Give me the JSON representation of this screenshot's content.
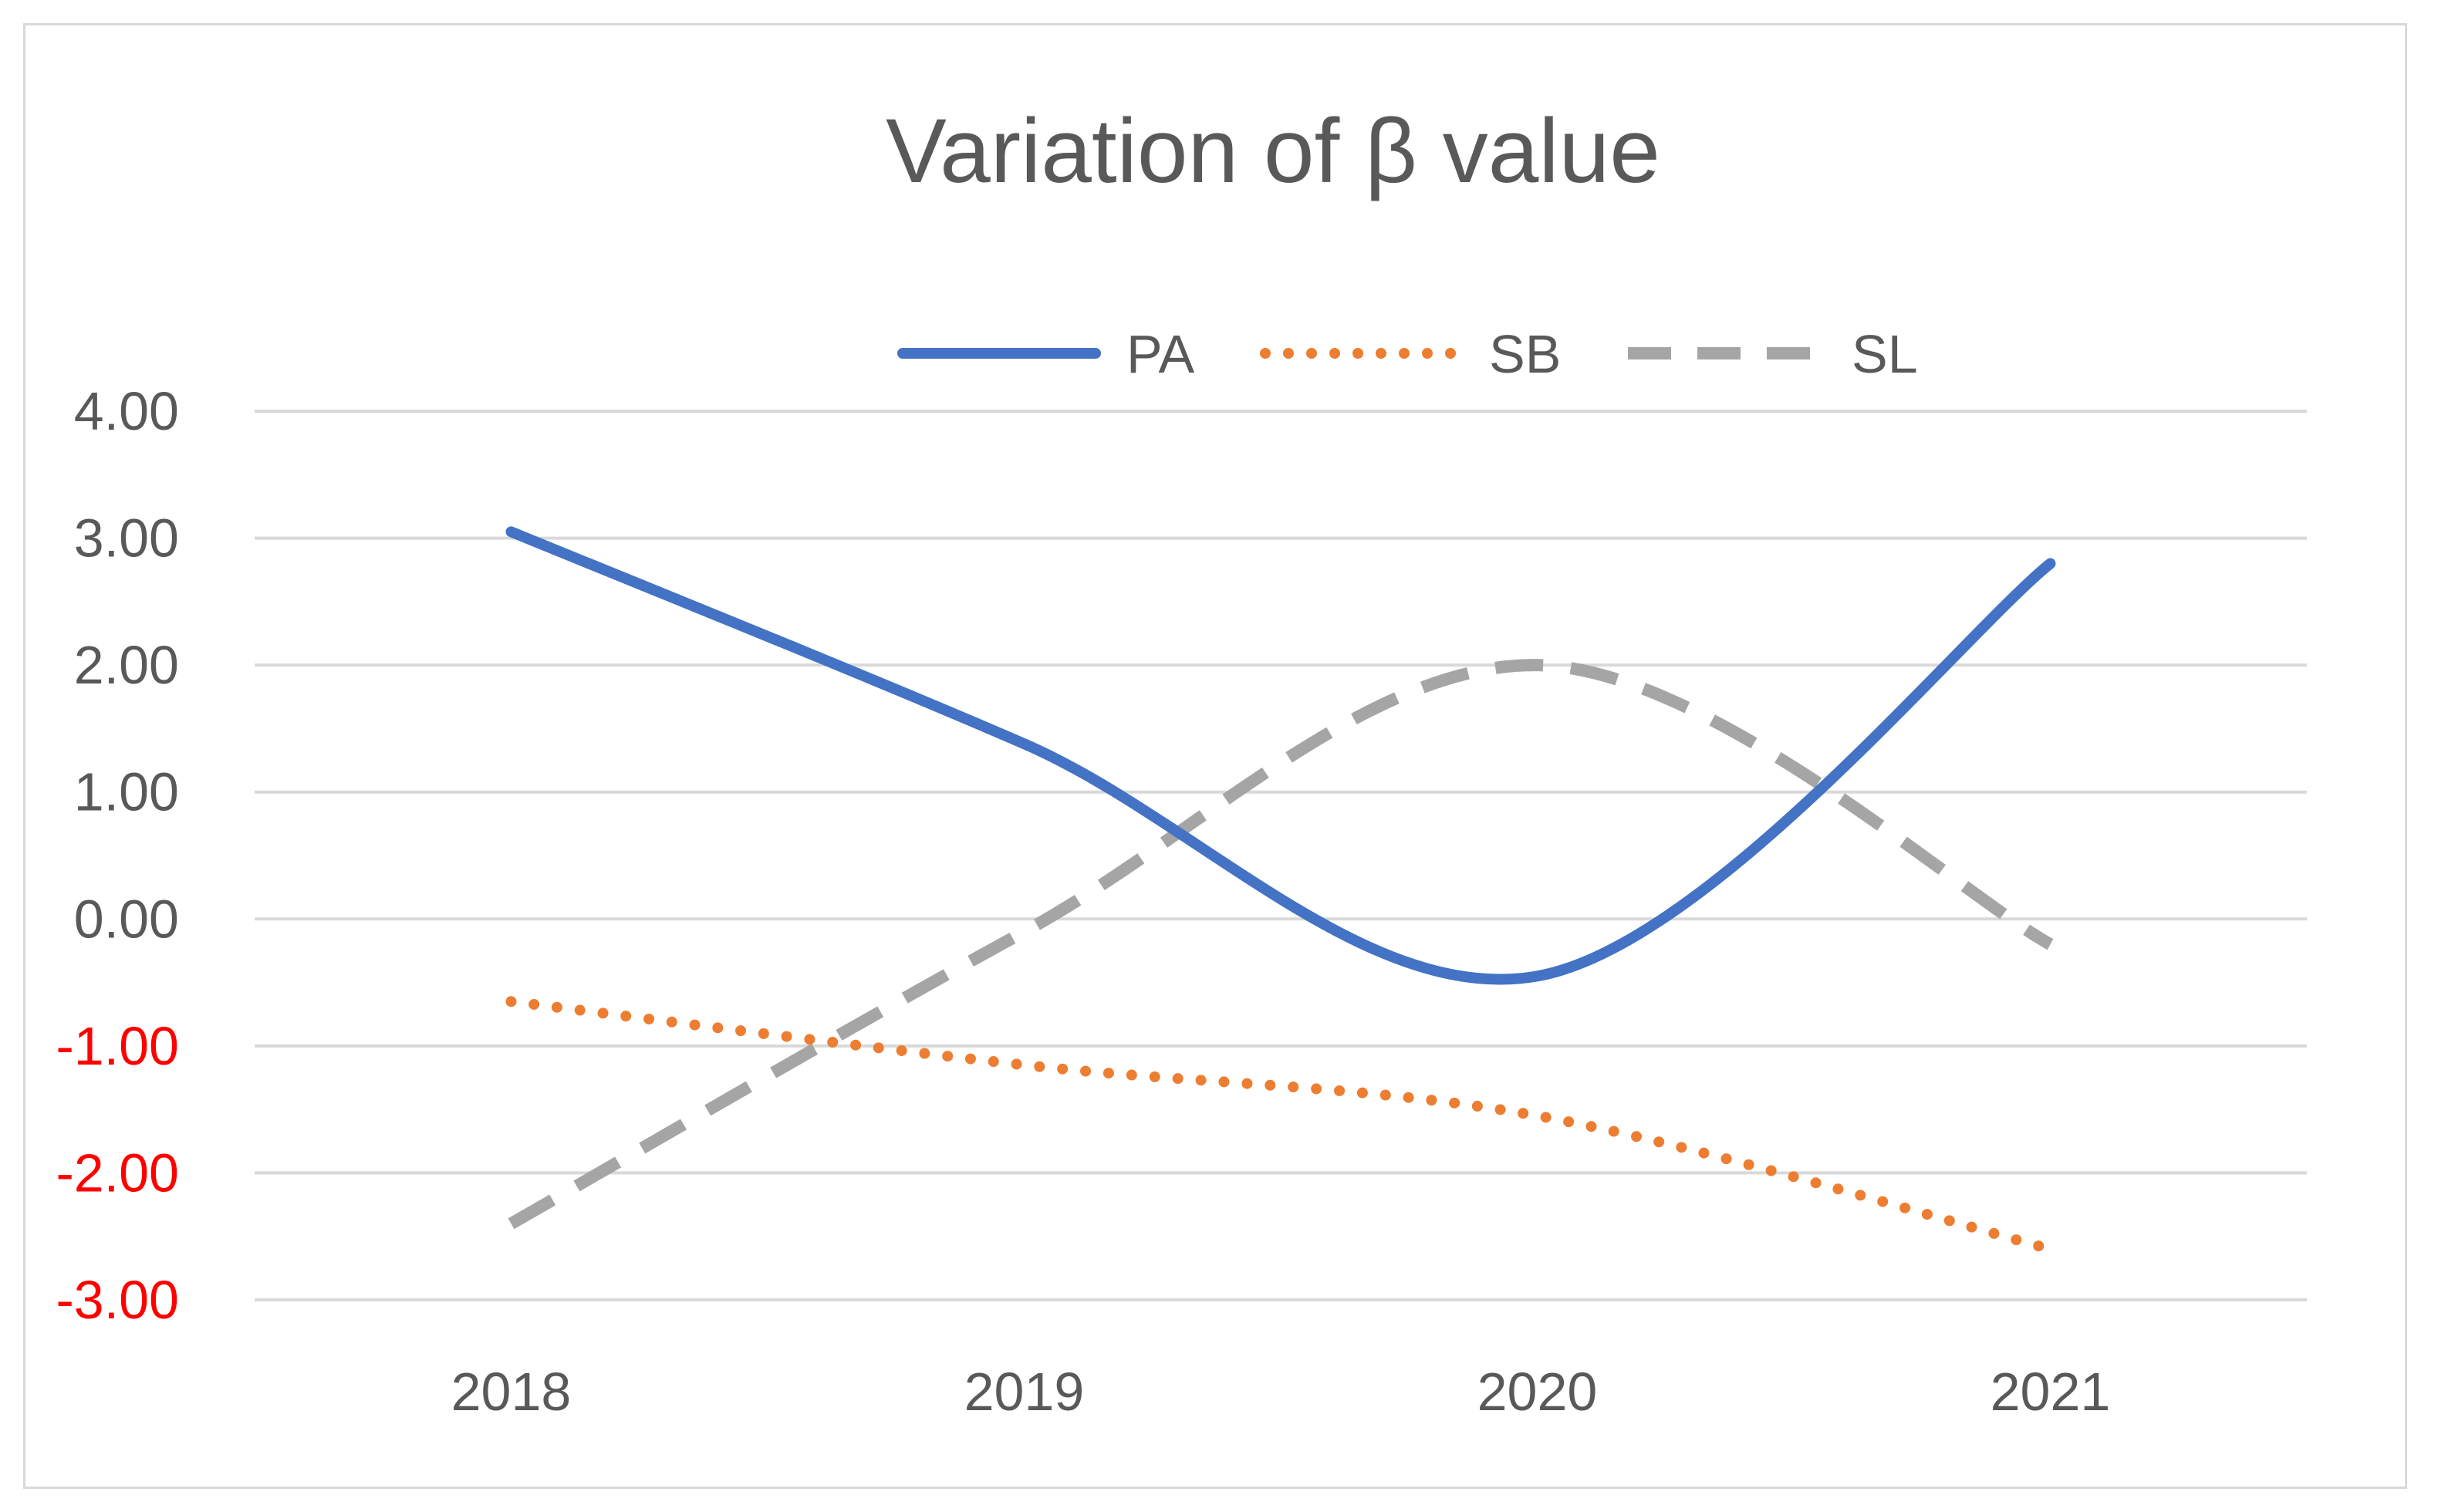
{
  "chart_data": {
    "type": "line",
    "title": "Variation of β value",
    "xlabel": "",
    "ylabel": "",
    "categories": [
      "2018",
      "2019",
      "2020",
      "2021"
    ],
    "ylim": [
      -3,
      4
    ],
    "yticks": [
      {
        "value": 4,
        "label": "4.00"
      },
      {
        "value": 3,
        "label": "3.00"
      },
      {
        "value": 2,
        "label": "2.00"
      },
      {
        "value": 1,
        "label": "1.00"
      },
      {
        "value": 0,
        "label": "0.00"
      },
      {
        "value": -1,
        "label": "-1.00"
      },
      {
        "value": -2,
        "label": "-2.00"
      },
      {
        "value": -3,
        "label": "-3.00"
      }
    ],
    "legend_position": "top-center",
    "grid": true,
    "series": [
      {
        "name": "PA",
        "values": [
          3.05,
          1.38,
          -0.45,
          2.8
        ],
        "color": "#4472c4",
        "style": "solid",
        "smooth": true
      },
      {
        "name": "SB",
        "values": [
          -0.65,
          -1.15,
          -1.55,
          -2.6
        ],
        "color": "#ed7d31",
        "style": "dotted",
        "smooth": true
      },
      {
        "name": "SL",
        "values": [
          -2.4,
          -0.1,
          2.0,
          -0.2
        ],
        "color": "#a5a5a5",
        "style": "dashed",
        "smooth": true
      }
    ]
  },
  "colors": {
    "gridline": "#d9d9d9",
    "positive_tick": "#595959",
    "negative_tick": "#ff0000"
  }
}
